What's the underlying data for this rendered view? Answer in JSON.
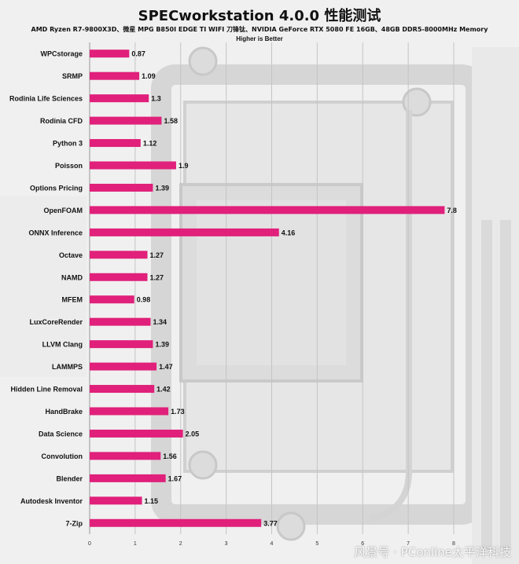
{
  "chart_data": {
    "type": "bar",
    "orientation": "horizontal",
    "title": "SPECworkstation 4.0.0 性能测试",
    "subtitle": "AMD Ryzen R7-9800X3D、微星 MPG B850I EDGE TI WIFI 刀锋钛、NVIDIA GeForce RTX 5080 FE 16GB、48GB DDR5-8000MHz Memory",
    "note": "Higher is Better",
    "categories": [
      "WPCstorage",
      "SRMP",
      "Rodinia Life Sciences",
      "Rodinia CFD",
      "Python 3",
      "Poisson",
      "Options Pricing",
      "OpenFOAM",
      "ONNX Inference",
      "Octave",
      "NAMD",
      "MFEM",
      "LuxCoreRender",
      "LLVM Clang",
      "LAMMPS",
      "Hidden Line Removal",
      "HandBrake",
      "Data Science",
      "Convolution",
      "Blender",
      "Autodesk Inventor",
      "7-Zip"
    ],
    "values": [
      0.87,
      1.09,
      1.3,
      1.58,
      1.12,
      1.9,
      1.39,
      7.8,
      4.16,
      1.27,
      1.27,
      0.98,
      1.34,
      1.39,
      1.47,
      1.42,
      1.73,
      2.05,
      1.56,
      1.67,
      1.15,
      3.77
    ],
    "xlim": [
      0,
      8
    ],
    "xticks": [
      "0",
      "1",
      "2",
      "3",
      "4",
      "5",
      "6",
      "7",
      "8"
    ],
    "grid": true,
    "bar_color": "#e0207a"
  },
  "watermark": "风景号 · PConline太平洋科技"
}
